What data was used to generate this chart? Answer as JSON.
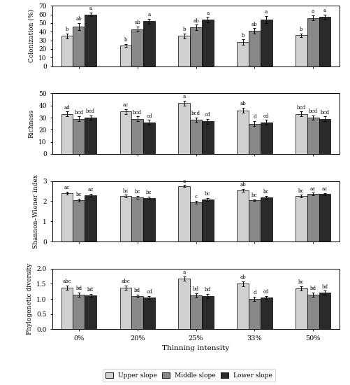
{
  "thinning_labels": [
    "0%",
    "20%",
    "25%",
    "33%",
    "50%"
  ],
  "slope_labels": [
    "Upper slope",
    "Middle slope",
    "Lower slope"
  ],
  "colors": [
    "#d0d0d0",
    "#888888",
    "#2a2a2a"
  ],
  "colonization": {
    "values": [
      [
        35,
        46,
        60
      ],
      [
        24,
        43,
        52
      ],
      [
        35,
        45,
        54
      ],
      [
        28,
        41,
        54
      ],
      [
        36,
        56,
        57
      ]
    ],
    "errors": [
      [
        3,
        4,
        2
      ],
      [
        2,
        3,
        3
      ],
      [
        3,
        3,
        3
      ],
      [
        3,
        3,
        4
      ],
      [
        2,
        3,
        3
      ]
    ],
    "labels": [
      [
        "b",
        "ab",
        "a"
      ],
      [
        "b",
        "ab",
        "a"
      ],
      [
        "b",
        "ab",
        "a"
      ],
      [
        "b",
        "ab",
        "a"
      ],
      [
        "b",
        "a",
        "a"
      ]
    ],
    "ylabel": "Colonization (%)",
    "ylim": [
      0,
      70
    ],
    "yticks": [
      0,
      10,
      20,
      30,
      40,
      50,
      60,
      70
    ]
  },
  "richness": {
    "values": [
      [
        33,
        29,
        30
      ],
      [
        35,
        29,
        26
      ],
      [
        42,
        28,
        27
      ],
      [
        36,
        25,
        26
      ],
      [
        33,
        30,
        29
      ]
    ],
    "errors": [
      [
        2,
        2,
        2
      ],
      [
        2,
        2,
        2
      ],
      [
        2,
        2,
        2
      ],
      [
        2,
        2,
        2
      ],
      [
        2,
        2,
        2
      ]
    ],
    "labels": [
      [
        "ad",
        "bcd",
        "bcd"
      ],
      [
        "ac",
        "bcd",
        "cd"
      ],
      [
        "a",
        "bcd",
        "cd"
      ],
      [
        "ab",
        "d",
        "cd"
      ],
      [
        "bcd",
        "bcd",
        "bcd"
      ]
    ],
    "ylabel": "Richness",
    "ylim": [
      0,
      50
    ],
    "yticks": [
      0,
      10,
      20,
      30,
      40,
      50
    ]
  },
  "shannon": {
    "values": [
      [
        2.4,
        2.05,
        2.3
      ],
      [
        2.25,
        2.2,
        2.15
      ],
      [
        2.75,
        1.95,
        2.1
      ],
      [
        2.55,
        2.05,
        2.2
      ],
      [
        2.25,
        2.35,
        2.35
      ]
    ],
    "errors": [
      [
        0.07,
        0.07,
        0.07
      ],
      [
        0.07,
        0.07,
        0.07
      ],
      [
        0.05,
        0.07,
        0.07
      ],
      [
        0.07,
        0.05,
        0.07
      ],
      [
        0.07,
        0.07,
        0.05
      ]
    ],
    "labels": [
      [
        "ac",
        "bc",
        "ac"
      ],
      [
        "bc",
        "bc",
        "bc"
      ],
      [
        "a",
        "c",
        "bc"
      ],
      [
        "ab",
        "bc",
        "bc"
      ],
      [
        "bc",
        "ac",
        "ac"
      ]
    ],
    "ylabel": "Shannon–Wiener index",
    "ylim": [
      0,
      3
    ],
    "yticks": [
      0,
      1,
      2,
      3
    ]
  },
  "phylogenetic": {
    "values": [
      [
        1.38,
        1.15,
        1.12
      ],
      [
        1.38,
        1.1,
        1.05
      ],
      [
        1.68,
        1.12,
        1.1
      ],
      [
        1.5,
        1.0,
        1.05
      ],
      [
        1.35,
        1.15,
        1.2
      ]
    ],
    "errors": [
      [
        0.07,
        0.07,
        0.05
      ],
      [
        0.07,
        0.05,
        0.05
      ],
      [
        0.07,
        0.07,
        0.07
      ],
      [
        0.08,
        0.07,
        0.05
      ],
      [
        0.07,
        0.07,
        0.07
      ]
    ],
    "labels": [
      [
        "abc",
        "bd",
        "bd"
      ],
      [
        "abc",
        "bd",
        "cd"
      ],
      [
        "a",
        "bd",
        "bd"
      ],
      [
        "ab",
        "d",
        "cd"
      ],
      [
        "bc",
        "bd",
        "bd"
      ]
    ],
    "ylabel": "Phylogenetic diversity",
    "ylim": [
      0.0,
      2.0
    ],
    "yticks": [
      0.0,
      0.5,
      1.0,
      1.5,
      2.0
    ]
  },
  "xlabel": "Thinning intensity",
  "bar_width": 0.2,
  "figure_width": 5.01,
  "figure_height": 5.5,
  "dpi": 100
}
